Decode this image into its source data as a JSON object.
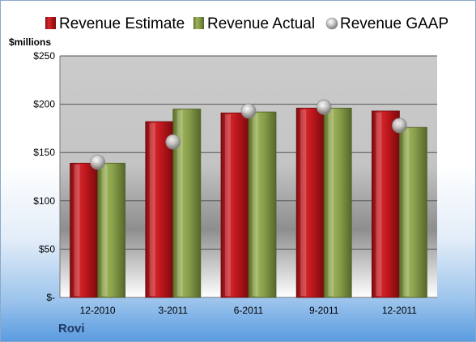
{
  "chart_data": {
    "type": "bar",
    "title": "",
    "ylabel": "$millions",
    "xlabel": "",
    "categories": [
      "12-2010",
      "3-2011",
      "6-2011",
      "9-2011",
      "12-2011"
    ],
    "series": [
      {
        "name": "Revenue Estimate",
        "type": "bar",
        "color": "#c0181d",
        "values": [
          139,
          182,
          191,
          196,
          193
        ]
      },
      {
        "name": "Revenue Actual",
        "type": "bar",
        "color": "#8aa04b",
        "values": [
          139,
          195,
          192,
          196,
          176
        ]
      },
      {
        "name": "Revenue GAAP",
        "type": "marker",
        "color": "#a6a6a6",
        "values": [
          140,
          161,
          193,
          197,
          178
        ]
      }
    ],
    "ylim": [
      0,
      250
    ],
    "yticks": [
      0,
      50,
      100,
      150,
      200,
      250
    ],
    "ytick_labels": [
      "$-",
      "$50",
      "$100",
      "$150",
      "$200",
      "$250"
    ],
    "grid": true,
    "legend_position": "top"
  },
  "footer": {
    "company": "Rovi"
  }
}
